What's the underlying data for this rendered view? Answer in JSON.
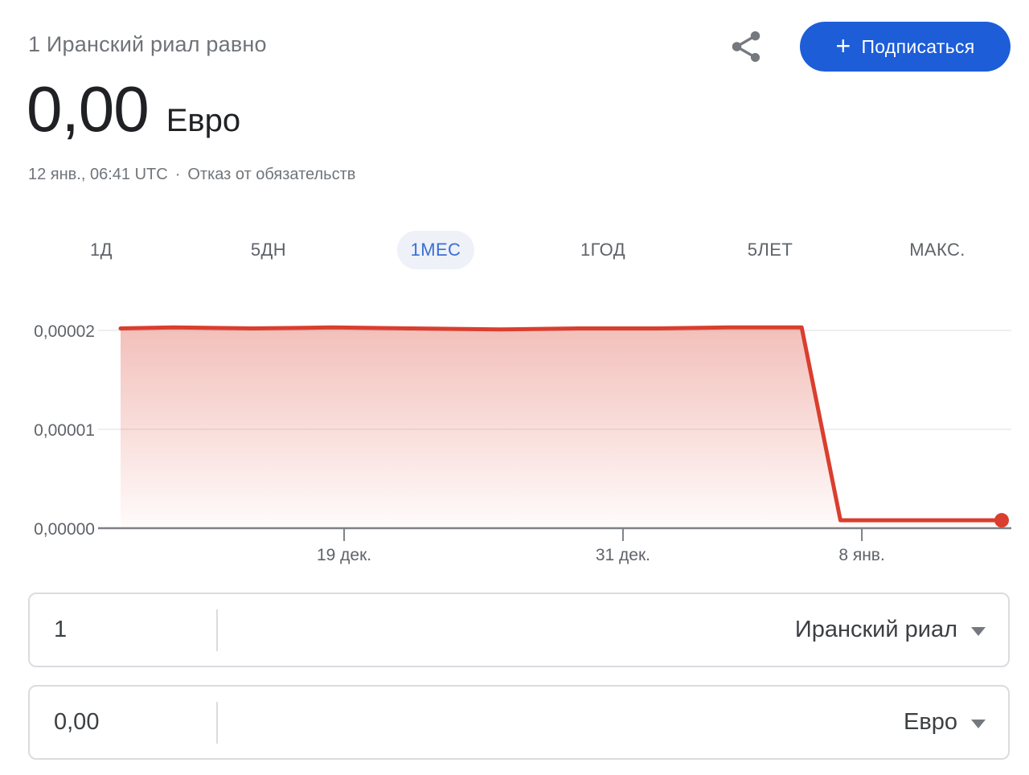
{
  "header": {
    "title": "1 Иранский риал равно",
    "value": "0,00",
    "currency": "Евро",
    "timestamp": "12 янв., 06:41 UTC",
    "separator": "·",
    "disclaimer": "Отказ от обязательств",
    "subscribe": {
      "plus": "+",
      "label": "Подписаться"
    }
  },
  "tabs": {
    "items": [
      {
        "label": "1Д",
        "active": false
      },
      {
        "label": "5ДН",
        "active": false
      },
      {
        "label": "1МЕС",
        "active": true
      },
      {
        "label": "1ГОД",
        "active": false
      },
      {
        "label": "5ЛЕТ",
        "active": false
      },
      {
        "label": "МАКС.",
        "active": false
      }
    ]
  },
  "chart_data": {
    "type": "area",
    "pair": "Иранский риал → Евро",
    "selected_range": "1МЕС",
    "ylim": [
      0,
      2e-05
    ],
    "grid": true,
    "y_ticks": [
      {
        "label": "0,00002",
        "value": 2e-05
      },
      {
        "label": "0,00001",
        "value": 1e-05
      },
      {
        "label": "0,00000",
        "value": 0
      }
    ],
    "x_ticks": [
      {
        "label": "19 дек.",
        "f": 0.2537
      },
      {
        "label": "31 дек.",
        "f": 0.5702
      },
      {
        "label": "8 янв.",
        "f": 0.8413
      }
    ],
    "points": [
      {
        "f": 0.0,
        "v": 2.02e-05
      },
      {
        "f": 0.06,
        "v": 2.03e-05
      },
      {
        "f": 0.15,
        "v": 2.02e-05
      },
      {
        "f": 0.24,
        "v": 2.03e-05
      },
      {
        "f": 0.33,
        "v": 2.02e-05
      },
      {
        "f": 0.43,
        "v": 2.01e-05
      },
      {
        "f": 0.52,
        "v": 2.02e-05
      },
      {
        "f": 0.61,
        "v": 2.02e-05
      },
      {
        "f": 0.69,
        "v": 2.03e-05
      },
      {
        "f": 0.773,
        "v": 2.03e-05
      },
      {
        "f": 0.817,
        "v": 8e-07
      },
      {
        "f": 1.0,
        "v": 8e-07
      }
    ]
  },
  "converter": {
    "from": {
      "amount": "1",
      "currency": "Иранский риал"
    },
    "to": {
      "amount": "0,00",
      "currency": "Евро"
    }
  },
  "colors": {
    "accent_blue": "#1d5dd8",
    "line_red": "#da3e2e",
    "fill_top": "rgba(218,62,46,0.33)",
    "fill_bottom": "rgba(218,62,46,0.02)",
    "active_tab_text": "#3a6fd3",
    "active_tab_bg": "#eef1f8",
    "axis_line": "#7d8186",
    "gridline": "#efefef",
    "axis_label": "#5f6368"
  }
}
